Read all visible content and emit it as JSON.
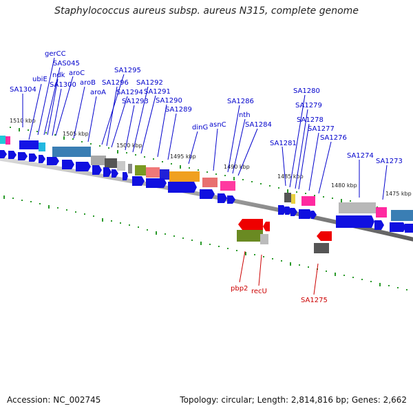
{
  "title": "Staphylococcus aureus subsp. aureus N315, complete genome",
  "accession": "Accession: NC_002745",
  "summary": "Topology: circular; Length: 2,814,816 bp; Genes: 2,662",
  "colors": {
    "gene_blue": "#1010e0",
    "gene_red": "#ee0000",
    "label_blue": "#0000cc",
    "label_red": "#cc0000",
    "tick_green": "#2a9a2a",
    "backbone": "#8a8a8a"
  },
  "kbp_labels": [
    "1510 kbp",
    "1505 kbp",
    "1500 kbp",
    "1495 kbp",
    "1490 kbp",
    "1485 kbp",
    "1480 kbp",
    "1475 kbp"
  ],
  "top_gene_labels": [
    "SA1304",
    "ubiE",
    "gerCC",
    "SAS045",
    "ndk",
    "SA1300",
    "aroC",
    "aroB",
    "aroA",
    "SA1295",
    "SA1296",
    "SA1294",
    "SA1293",
    "SA1292",
    "SA1291",
    "SA1290",
    "SA1289",
    "dinG",
    "asnC",
    "SA1286",
    "nth",
    "SA1284",
    "SA1281",
    "SA1280",
    "SA1279",
    "SA1278",
    "SA1277",
    "SA1276",
    "SA1274",
    "SA1273"
  ],
  "bottom_gene_labels": [
    "pbp2",
    "recU",
    "SA1275"
  ]
}
